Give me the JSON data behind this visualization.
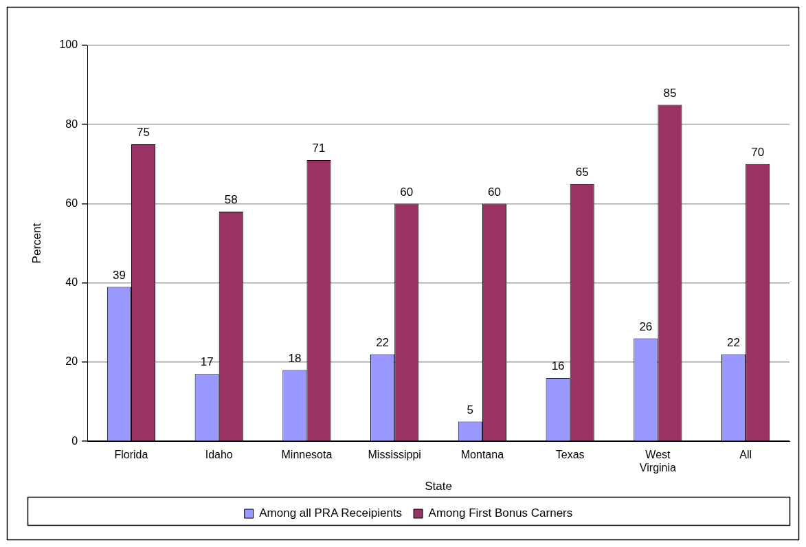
{
  "chart_data": {
    "type": "bar",
    "xlabel": "State",
    "ylabel": "Percent",
    "categories": [
      "Florida",
      "Idaho",
      "Minnesota",
      "Mississippi",
      "Montana",
      "Texas",
      "West Virginia",
      "All"
    ],
    "series": [
      {
        "name": "Among all PRA Receipients",
        "color": "#9999ff",
        "values": [
          39,
          17,
          18,
          22,
          5,
          16,
          26,
          22
        ]
      },
      {
        "name": "Among First Bonus Carners",
        "color": "#993366",
        "values": [
          75,
          58,
          71,
          60,
          60,
          65,
          85,
          70
        ]
      }
    ],
    "ylim": [
      0,
      100
    ],
    "yticks": [
      0,
      20,
      40,
      60,
      80,
      100
    ],
    "grid": "y",
    "legend": "bottom",
    "data_labels": true
  }
}
